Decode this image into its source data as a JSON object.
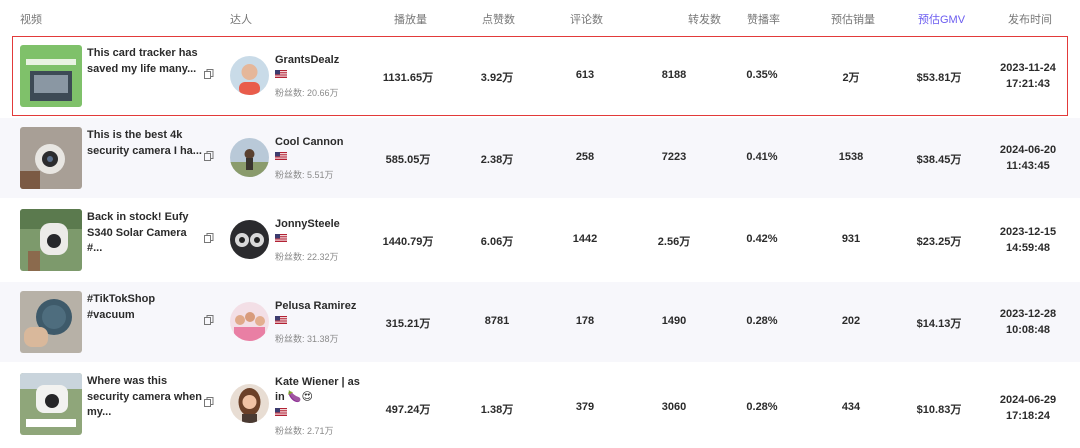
{
  "header": {
    "video": "视频",
    "creator": "达人",
    "views": "播放量",
    "likes": "点赞数",
    "comments": "评论数",
    "shares": "转发数",
    "like_rate": "赞播率",
    "est_sales": "预估销量",
    "est_gmv": "预估GMV",
    "publish_time": "发布时间"
  },
  "colors": {
    "accent": "#6b5cf0",
    "selection_border": "#e23a3a",
    "alt_row": "#f7f7fb"
  },
  "fans_label": "粉丝数",
  "rows": [
    {
      "title": "This card tracker has saved my life many...",
      "creator": "GrantsDealz",
      "fans": "粉丝数: 20.66万",
      "views": "1131.65万",
      "likes": "3.92万",
      "comments": "613",
      "shares": "8188",
      "like_rate": "0.35%",
      "sales": "2万",
      "gmv": "$53.81万",
      "date": "2023-11-24",
      "time": "17:21:43"
    },
    {
      "title": "This is the best 4k security camera I ha...",
      "creator": "Cool Cannon",
      "fans": "粉丝数: 5.51万",
      "views": "585.05万",
      "likes": "2.38万",
      "comments": "258",
      "shares": "7223",
      "like_rate": "0.41%",
      "sales": "1538",
      "gmv": "$38.45万",
      "date": "2024-06-20",
      "time": "11:43:45"
    },
    {
      "title": "Back in stock! Eufy S340 Solar Camera #...",
      "creator": "JonnySteele",
      "fans": "粉丝数: 22.32万",
      "views": "1440.79万",
      "likes": "6.06万",
      "comments": "1442",
      "shares": "2.56万",
      "like_rate": "0.42%",
      "sales": "931",
      "gmv": "$23.25万",
      "date": "2023-12-15",
      "time": "14:59:48"
    },
    {
      "title": "#TikTokShop #vacuum",
      "creator": "Pelusa Ramirez",
      "fans": "粉丝数: 31.38万",
      "views": "315.21万",
      "likes": "8781",
      "comments": "178",
      "shares": "1490",
      "like_rate": "0.28%",
      "sales": "202",
      "gmv": "$14.13万",
      "date": "2023-12-28",
      "time": "10:08:48"
    },
    {
      "title": "Where was this security camera when my...",
      "creator": "Kate Wiener | as in 🍆😍",
      "fans": "粉丝数: 2.71万",
      "views": "497.24万",
      "likes": "1.38万",
      "comments": "379",
      "shares": "3060",
      "like_rate": "0.28%",
      "sales": "434",
      "gmv": "$10.83万",
      "date": "2024-06-29",
      "time": "17:18:24"
    }
  ]
}
